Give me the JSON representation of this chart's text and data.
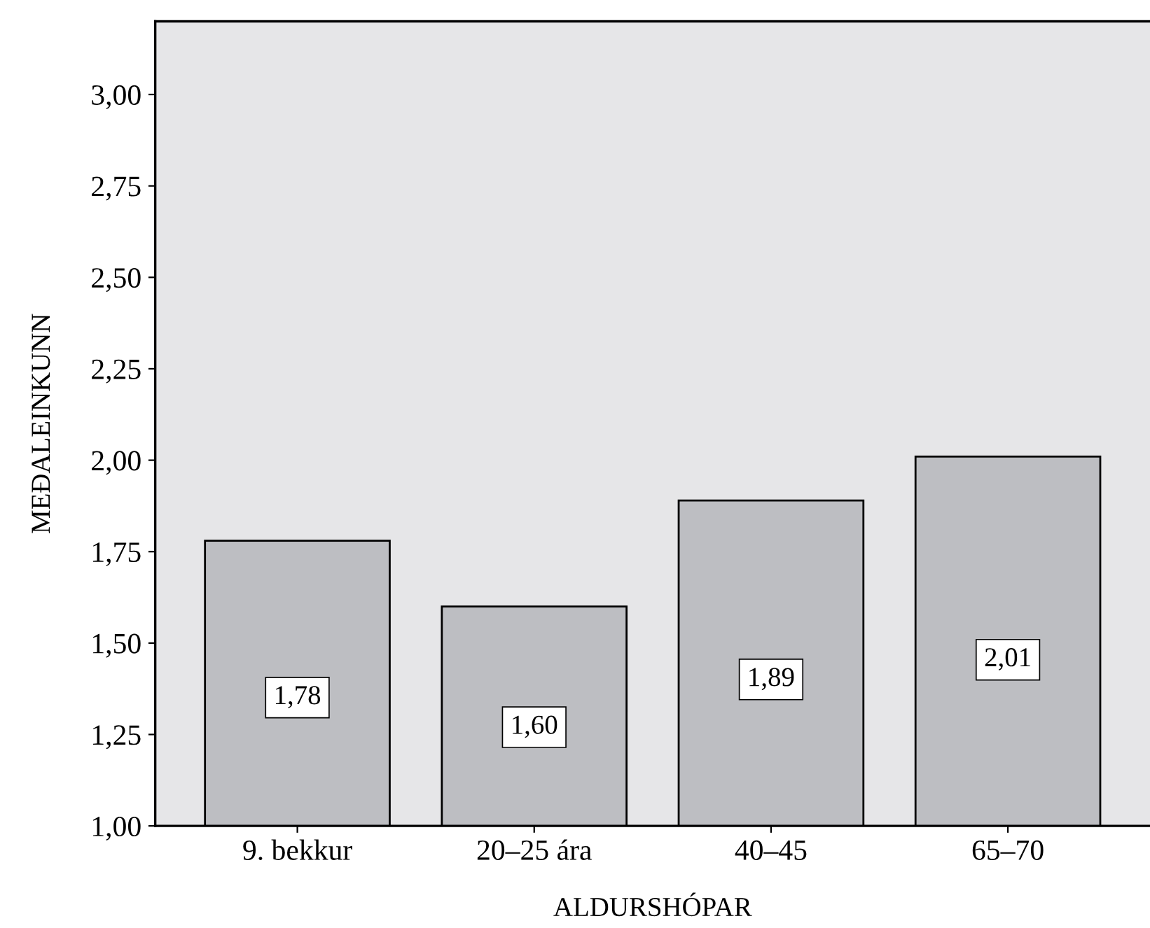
{
  "chart_data": {
    "type": "bar",
    "xlabel": "ALDURSHÓPAR",
    "ylabel": "MEÐALEINKUNN",
    "categories": [
      "9. bekkur",
      "20–25 ára",
      "40–45",
      "65–70"
    ],
    "values": [
      1.78,
      1.6,
      1.89,
      2.01
    ],
    "value_labels": [
      "1,78",
      "1,60",
      "1,89",
      "2,01"
    ],
    "color": "#bdbec2",
    "ylim": [
      1.0,
      3.2
    ],
    "yticks": [
      {
        "value": 1.0,
        "label": "1,00"
      },
      {
        "value": 1.25,
        "label": "1,25"
      },
      {
        "value": 1.5,
        "label": "1,50"
      },
      {
        "value": 1.75,
        "label": "1,75"
      },
      {
        "value": 2.0,
        "label": "2,00"
      },
      {
        "value": 2.25,
        "label": "2,25"
      },
      {
        "value": 2.5,
        "label": "2,50"
      },
      {
        "value": 2.75,
        "label": "2,75"
      },
      {
        "value": 3.0,
        "label": "3,00"
      }
    ],
    "grid": false,
    "legend": false
  }
}
